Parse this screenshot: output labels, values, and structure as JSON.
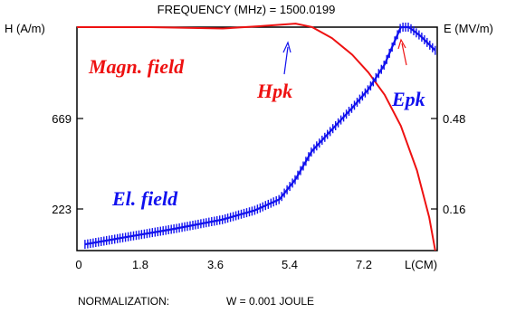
{
  "chart_data": {
    "type": "line",
    "title": "FREQUENCY (MHz) = 1500.0199",
    "xlabel": "L(CM)",
    "ylabel_left": "H (A/m)",
    "ylabel_right": "E (MV/m)",
    "xlim": [
      0,
      8.9
    ],
    "ylim_left": [
      0,
      1004
    ],
    "ylim_right": [
      0,
      0.72
    ],
    "x_ticks": [
      "0",
      "1.8",
      "3.6",
      "5.4",
      "7.2"
    ],
    "y_ticks_left": [
      "223",
      "669"
    ],
    "y_ticks_right": [
      "0.16",
      "0.48"
    ],
    "grid": false,
    "series": [
      {
        "name": "Magn. field",
        "axis": "left",
        "color": "#ee1111",
        "x": [
          0,
          1.8,
          3.6,
          4.5,
          5.4,
          5.8,
          6.3,
          6.8,
          7.2,
          7.6,
          8.0,
          8.4,
          8.7,
          8.85
        ],
        "y": [
          1004,
          1004,
          998,
          1008,
          1020,
          1005,
          955,
          880,
          800,
          700,
          560,
          360,
          150,
          0
        ]
      },
      {
        "name": "El. field",
        "axis": "right",
        "color": "#1111ee",
        "x": [
          0.2,
          1.2,
          2.4,
          3.6,
          4.4,
          5.0,
          5.4,
          5.8,
          6.3,
          6.8,
          7.2,
          7.6,
          7.8,
          8.0,
          8.2,
          8.5,
          8.85
        ],
        "y": [
          0.02,
          0.043,
          0.07,
          0.1,
          0.13,
          0.165,
          0.23,
          0.32,
          0.39,
          0.46,
          0.52,
          0.6,
          0.66,
          0.72,
          0.72,
          0.69,
          0.645
        ]
      }
    ],
    "annotations": [
      {
        "text": "Magn. field",
        "color": "#ee1111"
      },
      {
        "text": "Hpk",
        "color": "#ee1111",
        "arrow_color": "#1111ee"
      },
      {
        "text": "Epk",
        "color": "#1111ee",
        "arrow_color": "#ee1111"
      },
      {
        "text": "El. field",
        "color": "#1111ee"
      }
    ]
  },
  "footer": {
    "normalization_label": "NORMALIZATION:",
    "energy": "W = 0.001 JOULE"
  }
}
